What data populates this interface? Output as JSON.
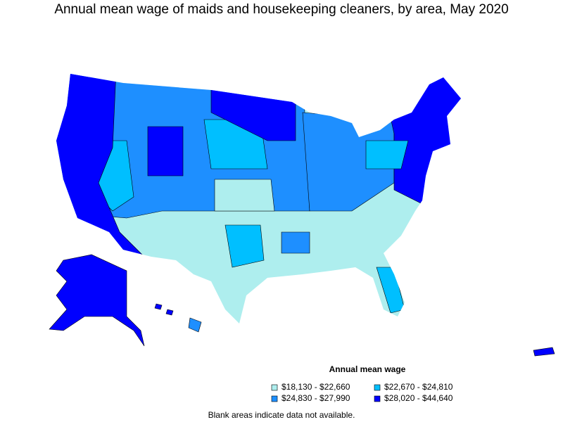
{
  "title": "Annual mean wage of maids and housekeeping cleaners, by area, May 2020",
  "legend": {
    "title": "Annual mean wage",
    "items": [
      {
        "label": "$18,130 - $22,660",
        "color": "#aeeeee"
      },
      {
        "label": "$22,670 - $24,810",
        "color": "#00bfff"
      },
      {
        "label": "$24,830 - $27,990",
        "color": "#1e8fff"
      },
      {
        "label": "$28,020 - $44,640",
        "color": "#0000ff"
      }
    ]
  },
  "footnote": "Blank areas indicate data not available."
}
